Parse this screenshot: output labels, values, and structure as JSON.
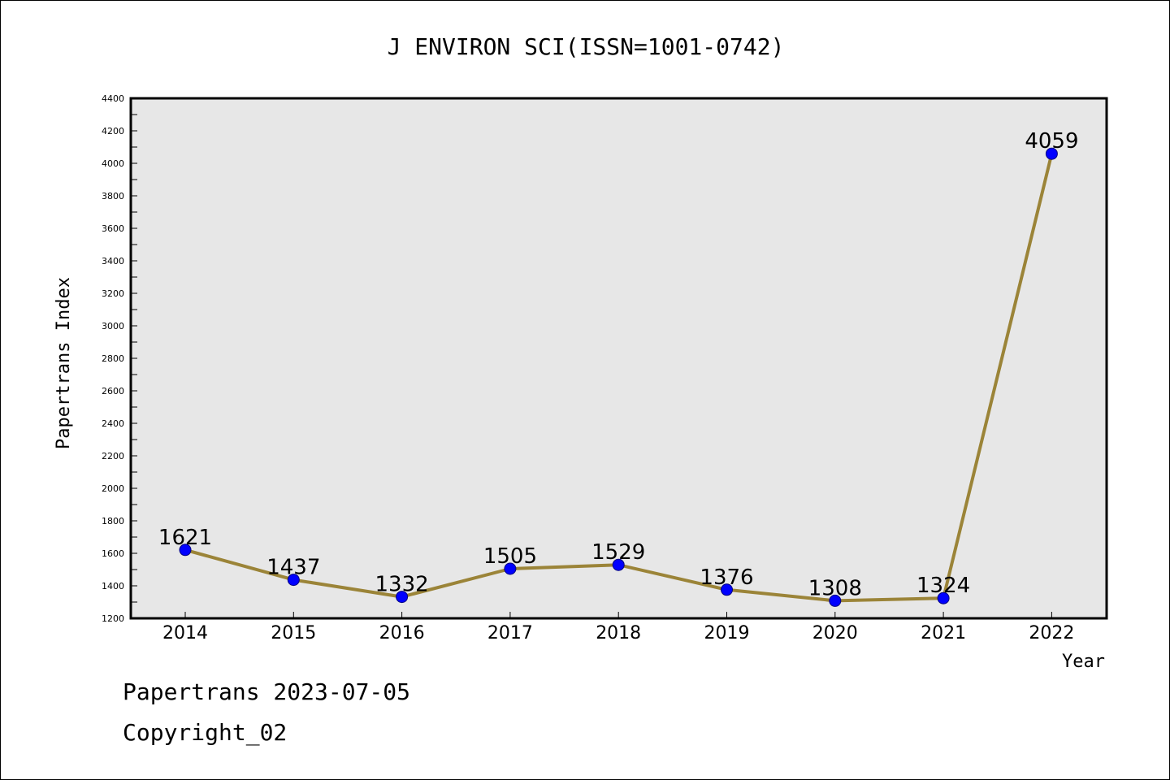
{
  "chart_data": {
    "type": "line",
    "title": "J ENVIRON SCI(ISSN=1001-0742)",
    "xlabel": "Year",
    "ylabel": "Papertrans Index",
    "categories": [
      "2014",
      "2015",
      "2016",
      "2017",
      "2018",
      "2019",
      "2020",
      "2021",
      "2022"
    ],
    "series": [
      {
        "values": [
          1621,
          1437,
          1332,
          1505,
          1529,
          1376,
          1308,
          1324,
          4059
        ]
      }
    ],
    "data_labels": [
      "1621",
      "1437",
      "1332",
      "1505",
      "1529",
      "1376",
      "1308",
      "1324",
      "4059"
    ],
    "ylim": [
      1200,
      4400
    ],
    "yticks": [
      1200,
      1400,
      1600,
      1800,
      2000,
      2200,
      2400,
      2600,
      2800,
      3000,
      3200,
      3400,
      3600,
      3800,
      4000,
      4200,
      4400
    ],
    "ytick_labels": [
      "1200",
      "1400",
      "1600",
      "1800",
      "2000",
      "2200",
      "2400",
      "2600",
      "2800",
      "3000",
      "3200",
      "3400",
      "3600",
      "3800",
      "4000",
      "4200",
      "4400"
    ],
    "grid": false,
    "legend": "none",
    "colors": {
      "line": "#9b8438",
      "marker": "#0000ff",
      "plot_background": "#e7e7e7"
    }
  },
  "footer": {
    "line1": "Papertrans 2023-07-05",
    "line2": "Copyright_02"
  }
}
